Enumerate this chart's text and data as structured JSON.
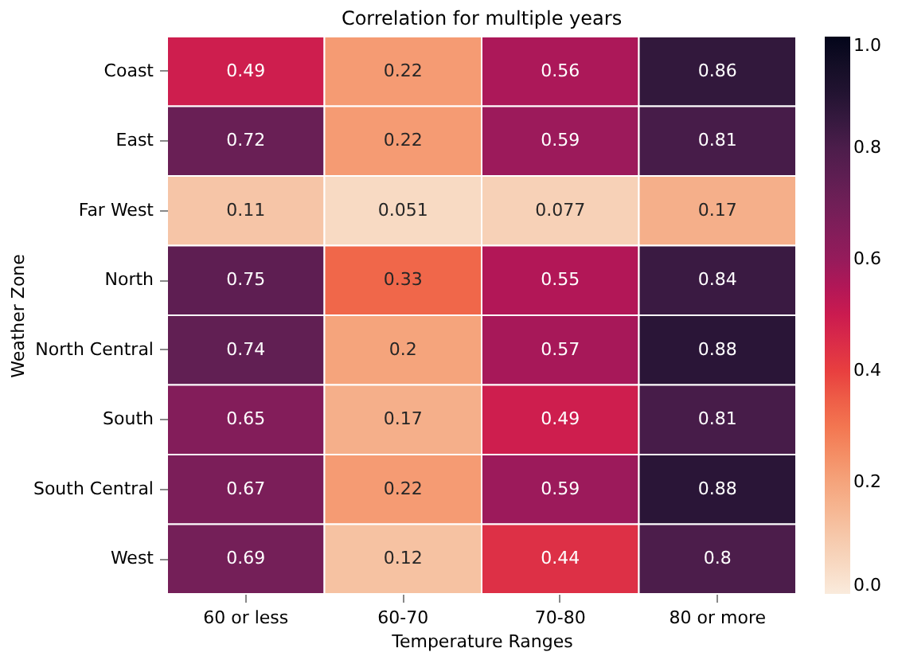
{
  "chart_data": {
    "type": "heatmap",
    "title": "Correlation for multiple years",
    "xlabel": "Temperature Ranges",
    "ylabel": "Weather Zone",
    "categories": [
      "60 or less",
      "60-70",
      "70-80",
      "80 or more"
    ],
    "y_categories": [
      "Coast",
      "East",
      "Far West",
      "North",
      "North Central",
      "South",
      "South Central",
      "West"
    ],
    "cells": [
      [
        0.49,
        0.22,
        0.56,
        0.86
      ],
      [
        0.72,
        0.22,
        0.59,
        0.81
      ],
      [
        0.11,
        0.051,
        0.077,
        0.17
      ],
      [
        0.75,
        0.33,
        0.55,
        0.84
      ],
      [
        0.74,
        0.2,
        0.57,
        0.88
      ],
      [
        0.65,
        0.17,
        0.49,
        0.81
      ],
      [
        0.67,
        0.22,
        0.59,
        0.88
      ],
      [
        0.69,
        0.12,
        0.44,
        0.8
      ]
    ],
    "clim": [
      0,
      1
    ],
    "cticks": [
      {
        "value": 0,
        "label": "0.0"
      },
      {
        "value": 0.2,
        "label": "0.2"
      },
      {
        "value": 0.4,
        "label": "0.4"
      },
      {
        "value": 0.6,
        "label": "0.6"
      },
      {
        "value": 0.8,
        "label": "0.8"
      },
      {
        "value": 1,
        "label": "1.0"
      }
    ],
    "data_labels": true,
    "grid": false
  }
}
